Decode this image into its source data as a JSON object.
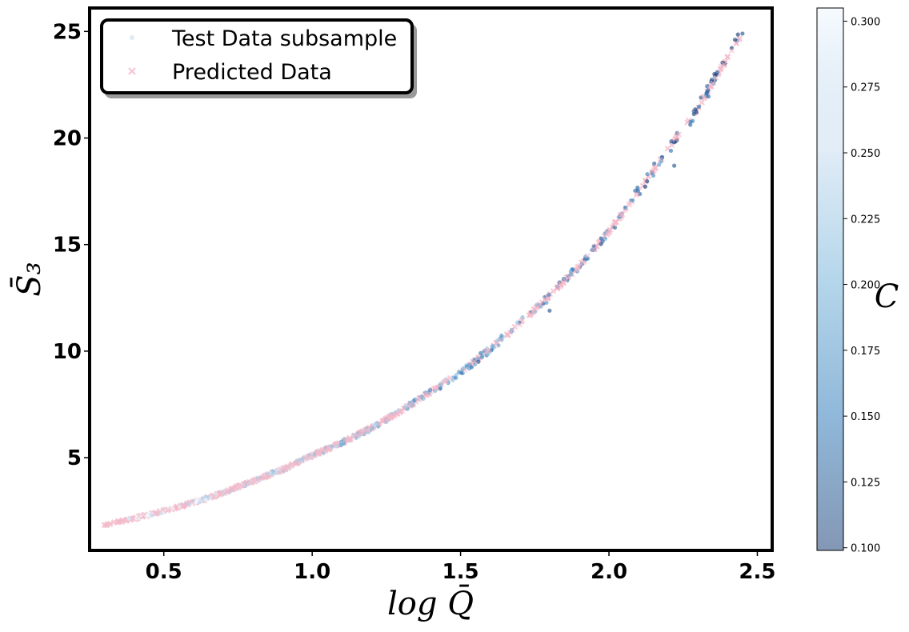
{
  "chart_data": {
    "type": "scatter",
    "xlabel": "log Q̄",
    "ylabel": "S̄₃",
    "colorbar_label": "C",
    "xlim": [
      0.25,
      2.55
    ],
    "ylim": [
      0.65,
      26.1
    ],
    "xticks": [
      0.5,
      1.0,
      1.5,
      2.0,
      2.5
    ],
    "yticks": [
      5,
      10,
      15,
      20,
      25
    ],
    "colorbar": {
      "range": [
        0.099,
        0.305
      ],
      "ticks": [
        0.1,
        0.125,
        0.15,
        0.175,
        0.2,
        0.225,
        0.25,
        0.275,
        0.3
      ],
      "tick_labels": [
        "0.100",
        "0.125",
        "0.150",
        "0.175",
        "0.200",
        "0.225",
        "0.250",
        "0.275",
        "0.300"
      ],
      "colormap": "Blues_r",
      "colormap_stops": [
        "#08306b",
        "#2171b5",
        "#6baed6",
        "#c6dbef",
        "#f7fbff"
      ],
      "alpha": 0.5
    },
    "legend": {
      "placement": "top-left",
      "entries": [
        "Test Data subsample",
        "Predicted Data"
      ]
    },
    "grid": false,
    "model_curve": {
      "x": [
        0.3,
        0.4,
        0.5,
        0.6,
        0.7,
        0.8,
        0.9,
        1.0,
        1.1,
        1.2,
        1.3,
        1.4,
        1.5,
        1.6,
        1.7,
        1.8,
        1.9,
        2.0,
        2.1,
        2.2,
        2.3,
        2.4,
        2.45
      ],
      "y": [
        1.85,
        2.15,
        2.5,
        2.9,
        3.35,
        3.9,
        4.45,
        5.1,
        5.7,
        6.4,
        7.2,
        8.1,
        9.0,
        10.1,
        11.3,
        12.6,
        14.0,
        15.6,
        17.5,
        19.5,
        21.4,
        23.8,
        24.9
      ]
    },
    "series": [
      {
        "name": "Test Data subsample",
        "marker": "circle",
        "x_range": [
          0.38,
          2.45
        ],
        "count": 380,
        "color_by": "C",
        "density": [
          {
            "x": [
              0.38,
              1.3
            ],
            "share": 0.58
          },
          {
            "x": [
              1.3,
              2.0
            ],
            "share": 0.27
          },
          {
            "x": [
              2.0,
              2.45
            ],
            "share": 0.15
          }
        ]
      },
      {
        "name": "Predicted Data",
        "marker": "x",
        "color": "#f4b8c8",
        "x_range": [
          0.3,
          2.45
        ],
        "count": 380,
        "density": [
          {
            "x": [
              0.3,
              1.3
            ],
            "share": 0.6
          },
          {
            "x": [
              1.3,
              2.0
            ],
            "share": 0.26
          },
          {
            "x": [
              2.0,
              2.45
            ],
            "share": 0.14
          }
        ]
      }
    ],
    "annotated_points": [
      {
        "x": 0.3,
        "y": 1.85
      },
      {
        "x": 1.56,
        "y": 9.5
      },
      {
        "x": 1.8,
        "y": 11.9
      },
      {
        "x": 2.02,
        "y": 15.8
      },
      {
        "x": 2.22,
        "y": 18.7
      },
      {
        "x": 2.31,
        "y": 21.9
      },
      {
        "x": 2.39,
        "y": 23.5
      },
      {
        "x": 2.45,
        "y": 24.9
      }
    ]
  }
}
